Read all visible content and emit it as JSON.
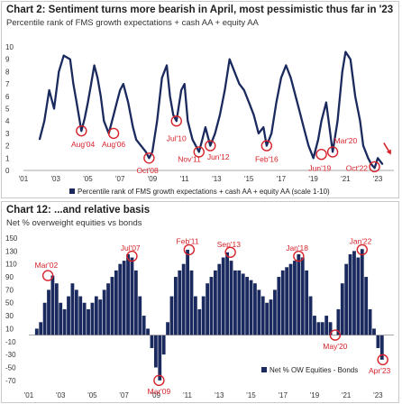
{
  "chart_data": [
    {
      "type": "line",
      "title": "Chart 2: Sentiment turns more bearish in April, most pessimistic thus far in '23",
      "subtitle": "Percentile rank of FMS growth expectations + cash AA + equity AA",
      "xlabel": "",
      "ylabel": "",
      "ylim": [
        0,
        10
      ],
      "xlim": [
        2001,
        2024
      ],
      "yticks": [
        "10",
        "9",
        "8",
        "7",
        "6",
        "5",
        "4",
        "3",
        "2",
        "1",
        "0"
      ],
      "xticks": [
        "'01",
        "'03",
        "'05",
        "'07",
        "'09",
        "'11",
        "'13",
        "'15",
        "'17",
        "'19",
        "'21",
        "'23"
      ],
      "grid": false,
      "legend_position": "bottom",
      "series": [
        {
          "name": "Percentile rank of FMS growth expectations + cash AA + equity AA (scale 1-10)",
          "color": "#1b2a5e",
          "x": [
            2002.0,
            2002.3,
            2002.6,
            2002.9,
            2003.2,
            2003.5,
            2003.9,
            2004.1,
            2004.3,
            2004.6,
            2004.8,
            2005.0,
            2005.2,
            2005.4,
            2005.6,
            2005.8,
            2006.0,
            2006.3,
            2006.6,
            2006.8,
            2007.0,
            2007.2,
            2007.5,
            2007.8,
            2008.0,
            2008.3,
            2008.6,
            2008.8,
            2009.0,
            2009.3,
            2009.6,
            2009.9,
            2010.1,
            2010.3,
            2010.5,
            2010.8,
            2011.0,
            2011.2,
            2011.5,
            2011.7,
            2011.9,
            2012.1,
            2012.3,
            2012.6,
            2012.9,
            2013.2,
            2013.5,
            2013.8,
            2014.1,
            2014.4,
            2014.7,
            2015.0,
            2015.3,
            2015.6,
            2015.9,
            2016.1,
            2016.4,
            2016.7,
            2017.0,
            2017.3,
            2017.6,
            2017.9,
            2018.1,
            2018.4,
            2018.7,
            2019.0,
            2019.3,
            2019.5,
            2019.8,
            2020.0,
            2020.2,
            2020.5,
            2020.8,
            2021.0,
            2021.3,
            2021.6,
            2021.9,
            2022.1,
            2022.4,
            2022.6,
            2022.8,
            2023.0,
            2023.3
          ],
          "y": [
            2.5,
            4.0,
            6.5,
            5.0,
            8.0,
            9.3,
            9.0,
            7.0,
            5.5,
            3.2,
            4.2,
            5.5,
            7.0,
            8.5,
            7.5,
            6.0,
            4.0,
            3.0,
            4.5,
            5.5,
            6.5,
            7.0,
            5.5,
            3.5,
            2.5,
            2.0,
            1.5,
            1.0,
            1.5,
            4.0,
            7.5,
            8.5,
            6.0,
            4.5,
            4.0,
            6.5,
            7.0,
            4.0,
            2.5,
            2.0,
            1.5,
            2.5,
            3.5,
            2.0,
            3.0,
            4.5,
            6.5,
            9.0,
            8.0,
            7.0,
            6.5,
            5.5,
            4.5,
            3.0,
            3.5,
            2.0,
            3.0,
            5.5,
            7.5,
            8.5,
            7.5,
            6.0,
            5.0,
            3.5,
            2.0,
            1.0,
            2.5,
            4.0,
            5.5,
            3.5,
            1.5,
            4.0,
            8.0,
            9.6,
            9.0,
            6.0,
            4.0,
            2.0,
            1.0,
            0.5,
            0.2,
            1.0,
            0.5
          ]
        }
      ],
      "annotations": [
        {
          "label": "Aug'04",
          "x": 2004.6,
          "y": 3.2,
          "label_x": 2004.7,
          "label_y": 2.1
        },
        {
          "label": "Aug'06",
          "x": 2006.6,
          "y": 3.0,
          "label_x": 2006.6,
          "label_y": 2.1
        },
        {
          "label": "Oct'08",
          "x": 2008.8,
          "y": 1.0,
          "label_x": 2008.7,
          "label_y": 0.0
        },
        {
          "label": "Jul'10",
          "x": 2010.5,
          "y": 4.0,
          "label_x": 2010.5,
          "label_y": 2.6
        },
        {
          "label": "Nov'11",
          "x": 2011.9,
          "y": 1.5,
          "label_x": 2011.3,
          "label_y": 0.9
        },
        {
          "label": "Jun'12",
          "x": 2012.6,
          "y": 2.0,
          "label_x": 2013.1,
          "label_y": 1.1
        },
        {
          "label": "Feb'16",
          "x": 2016.1,
          "y": 2.0,
          "label_x": 2016.1,
          "label_y": 0.9
        },
        {
          "label": "Jun'19",
          "x": 2019.5,
          "y": 1.3,
          "label_x": 2019.4,
          "label_y": 0.2
        },
        {
          "label": "Mar'20",
          "x": 2020.2,
          "y": 1.5,
          "label_x": 2021.0,
          "label_y": 2.4
        },
        {
          "label": "Oct'22",
          "x": 2022.8,
          "y": 0.3,
          "label_x": 2021.7,
          "label_y": 0.2
        }
      ],
      "arrow": {
        "x": 2023.6,
        "y": 1.5
      }
    },
    {
      "type": "bar",
      "title": "Chart 12: ...and relative basis",
      "subtitle": "Net % overweight equities vs bonds",
      "xlabel": "",
      "ylabel": "",
      "ylim": [
        -80,
        150
      ],
      "xlim": [
        2001,
        2024
      ],
      "yticks": [
        "150",
        "130",
        "110",
        "90",
        "70",
        "50",
        "30",
        "10",
        "-10",
        "-30",
        "-50",
        "-70"
      ],
      "xticks": [
        "'01",
        "'03",
        "'05",
        "'07",
        "'09",
        "'11",
        "'13",
        "'15",
        "'17",
        "'19",
        "'21",
        "'23"
      ],
      "grid": false,
      "legend_position": "bottom-right",
      "series": [
        {
          "name": "Net % OW Equities - Bonds",
          "color": "#1b2a5e",
          "x": [
            2001.5,
            2001.75,
            2002.0,
            2002.25,
            2002.5,
            2002.75,
            2003.0,
            2003.25,
            2003.5,
            2003.75,
            2004.0,
            2004.25,
            2004.5,
            2004.75,
            2005.0,
            2005.25,
            2005.5,
            2005.75,
            2006.0,
            2006.25,
            2006.5,
            2006.75,
            2007.0,
            2007.25,
            2007.5,
            2007.75,
            2008.0,
            2008.25,
            2008.5,
            2008.75,
            2009.0,
            2009.25,
            2009.5,
            2009.75,
            2010.0,
            2010.25,
            2010.5,
            2010.75,
            2011.0,
            2011.25,
            2011.5,
            2011.75,
            2012.0,
            2012.25,
            2012.5,
            2012.75,
            2013.0,
            2013.25,
            2013.5,
            2013.75,
            2014.0,
            2014.25,
            2014.5,
            2014.75,
            2015.0,
            2015.25,
            2015.5,
            2015.75,
            2016.0,
            2016.25,
            2016.5,
            2016.75,
            2017.0,
            2017.25,
            2017.5,
            2017.75,
            2018.0,
            2018.25,
            2018.5,
            2018.75,
            2019.0,
            2019.25,
            2019.5,
            2019.75,
            2020.0,
            2020.25,
            2020.5,
            2020.75,
            2021.0,
            2021.25,
            2021.5,
            2021.75,
            2022.0,
            2022.25,
            2022.5,
            2022.75,
            2023.0,
            2023.25
          ],
          "y": [
            10,
            20,
            50,
            70,
            92,
            80,
            50,
            40,
            60,
            80,
            70,
            60,
            50,
            40,
            50,
            60,
            55,
            70,
            80,
            90,
            100,
            110,
            115,
            125,
            120,
            100,
            60,
            30,
            10,
            -20,
            -50,
            -70,
            -30,
            20,
            60,
            90,
            100,
            110,
            132,
            100,
            60,
            40,
            60,
            80,
            90,
            100,
            110,
            120,
            128,
            115,
            100,
            100,
            95,
            90,
            85,
            80,
            70,
            60,
            50,
            55,
            70,
            90,
            100,
            105,
            110,
            115,
            125,
            120,
            100,
            60,
            30,
            20,
            20,
            30,
            20,
            0,
            40,
            80,
            110,
            125,
            130,
            120,
            133,
            90,
            40,
            10,
            -20,
            -38
          ]
        }
      ],
      "annotations": [
        {
          "label": "Mar'02",
          "x": 2002.2,
          "y": 92,
          "label_x": 2002.1,
          "label_y": 108
        },
        {
          "label": "Jul'07",
          "x": 2007.5,
          "y": 122,
          "label_x": 2007.4,
          "label_y": 135
        },
        {
          "label": "Mar'09",
          "x": 2009.2,
          "y": -70,
          "label_x": 2009.2,
          "label_y": -87
        },
        {
          "label": "Feb'11",
          "x": 2011.1,
          "y": 132,
          "label_x": 2011.0,
          "label_y": 145
        },
        {
          "label": "Sep'13",
          "x": 2013.7,
          "y": 128,
          "label_x": 2013.6,
          "label_y": 140
        },
        {
          "label": "Jan'18",
          "x": 2018.0,
          "y": 122,
          "label_x": 2017.9,
          "label_y": 135
        },
        {
          "label": "May'20",
          "x": 2020.3,
          "y": 0,
          "label_x": 2020.3,
          "label_y": -17
        },
        {
          "label": "Jan'22",
          "x": 2022.0,
          "y": 132,
          "label_x": 2021.9,
          "label_y": 145
        },
        {
          "label": "Apr'23",
          "x": 2023.3,
          "y": -38,
          "label_x": 2023.1,
          "label_y": -55
        }
      ]
    }
  ]
}
